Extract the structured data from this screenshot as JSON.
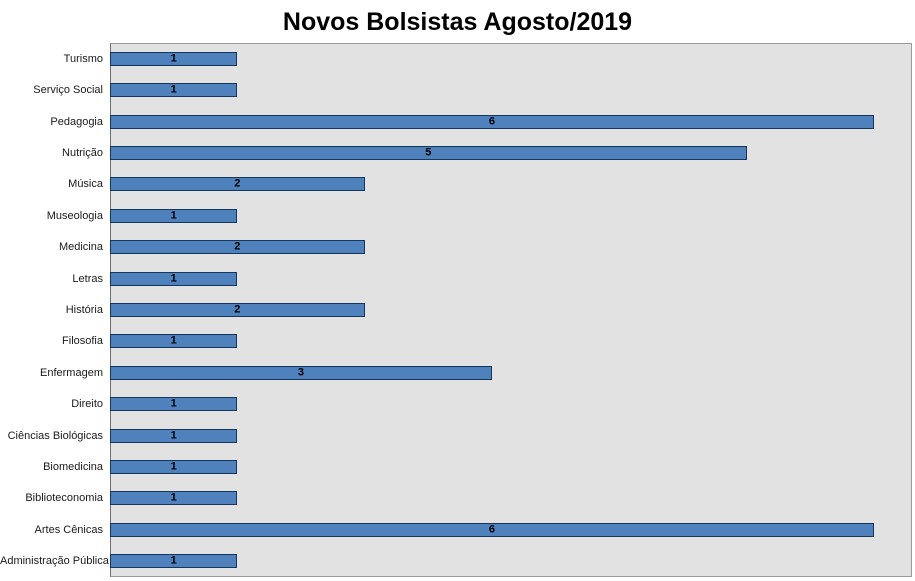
{
  "chart": {
    "title": "Novos Bolsistas Agosto/2019"
  },
  "chart_data": {
    "type": "bar",
    "orientation": "horizontal",
    "title": "Novos Bolsistas Agosto/2019",
    "categories": [
      "Turismo",
      "Serviço Social",
      "Pedagogia",
      "Nutrição",
      "Música",
      "Museologia",
      "Medicina",
      "Letras",
      "História",
      "Filosofia",
      "Enfermagem",
      "Direito",
      "Ciências Biológicas",
      "Biomedicina",
      "Biblioteconomia",
      "Artes Cênicas",
      "Administração Pública"
    ],
    "values": [
      1,
      1,
      6,
      5,
      2,
      1,
      2,
      1,
      2,
      1,
      3,
      1,
      1,
      1,
      1,
      6,
      1
    ],
    "xlabel": "",
    "ylabel": "",
    "xlim": [
      0,
      6.3
    ],
    "grid": false,
    "legend": "none",
    "data_labels": true,
    "colors": {
      "bar_fill": "#4f81bd",
      "bar_border": "#16365c",
      "plot_bg": "#e2e2e2",
      "data_label_color": "#000000",
      "category_label_color": "#1a1a1a"
    }
  }
}
